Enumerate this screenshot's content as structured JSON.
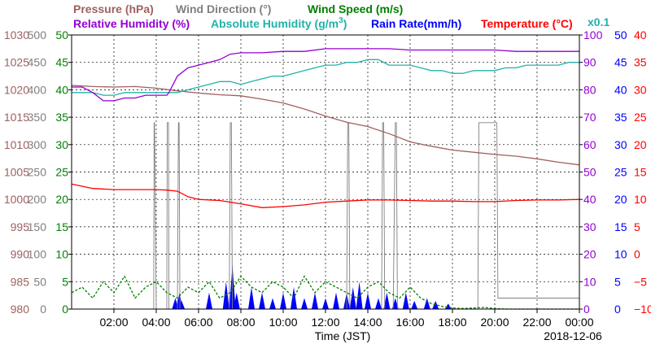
{
  "chart_data": {
    "type": "line",
    "date": "2018-12-06",
    "xlabel": "Time (JST)",
    "x_ticks": [
      "02:00",
      "04:00",
      "06:00",
      "08:00",
      "10:00",
      "12:00",
      "14:00",
      "16:00",
      "18:00",
      "20:00",
      "22:00",
      "00:00"
    ],
    "xlim_hours": [
      0,
      24
    ],
    "colors": {
      "pressure": "#a06060",
      "wind_direction": "#808080",
      "wind_speed": "#008000",
      "humidity": "#9400d3",
      "abs_humidity": "#20b2aa",
      "rain": "#0000ff",
      "temperature": "#ff0000"
    },
    "legend": {
      "pressure": "Pressure (hPa)",
      "wind_direction": "Wind Direction (°)",
      "wind_speed": "Wind Speed (m/s)",
      "humidity": "Relative Humidity (%)",
      "abs_humidity_main": "Absolute Humidity (g/m",
      "abs_humidity_sup": "3",
      "abs_humidity_end": ")",
      "rain": "Rain Rate(mm/h)",
      "temperature": "Temperature (°C)",
      "scale_note": "x0.1"
    },
    "axes": {
      "pressure": {
        "ticks": [
          "1030",
          "1025",
          "1020",
          "1015",
          "1010",
          "1005",
          "1000",
          "995",
          "990",
          "985",
          "980"
        ],
        "range": [
          980,
          1030
        ]
      },
      "wind_direction": {
        "ticks": [
          "500",
          "450",
          "400",
          "350",
          "300",
          "250",
          "200",
          "150",
          "100",
          "50",
          "0"
        ],
        "range": [
          0,
          500
        ]
      },
      "wind_speed": {
        "ticks": [
          "50",
          "45",
          "40",
          "35",
          "30",
          "25",
          "20",
          "15",
          "10",
          "5",
          "0"
        ],
        "range": [
          0,
          50
        ]
      },
      "humidity": {
        "ticks": [
          "100",
          "90",
          "80",
          "70",
          "60",
          "50",
          "40",
          "30",
          "20",
          "10",
          "0"
        ],
        "range": [
          0,
          100
        ]
      },
      "rain": {
        "ticks": [
          "50",
          "45",
          "40",
          "35",
          "30",
          "25",
          "20",
          "15",
          "10",
          "5",
          "0"
        ],
        "range": [
          0,
          50
        ]
      },
      "temperature": {
        "ticks": [
          "40",
          "35",
          "30",
          "25",
          "20",
          "15",
          "10",
          "5",
          "0",
          "−5",
          "−10"
        ],
        "range": [
          -10,
          40
        ]
      }
    },
    "series": [
      {
        "name": "Pressure",
        "axis": "pressure",
        "x": [
          0,
          1,
          2,
          3,
          4,
          5,
          6,
          7,
          8,
          9,
          10,
          11,
          12,
          13,
          14,
          15,
          16,
          17,
          18,
          19,
          20,
          21,
          22,
          23,
          24
        ],
        "values": [
          1020.8,
          1020.6,
          1020.5,
          1020.6,
          1020.3,
          1019.8,
          1019.4,
          1019.1,
          1018.9,
          1018.3,
          1017.6,
          1016.5,
          1015.2,
          1014.1,
          1013.3,
          1012.0,
          1010.5,
          1009.7,
          1009.0,
          1008.6,
          1008.2,
          1007.9,
          1007.4,
          1006.8,
          1006.3
        ]
      },
      {
        "name": "Relative Humidity",
        "axis": "humidity",
        "x": [
          0,
          0.5,
          1,
          1.5,
          2,
          2.5,
          3,
          3.5,
          4,
          4.5,
          4.6,
          5,
          5.5,
          6,
          6.5,
          7,
          7.5,
          8,
          9,
          10,
          11,
          12,
          13,
          14,
          15,
          16,
          17,
          18,
          19,
          20,
          21,
          22,
          23,
          24
        ],
        "values": [
          81,
          81,
          79,
          76,
          76,
          77,
          77,
          78,
          78,
          78,
          79,
          85,
          88,
          89,
          90,
          91,
          93,
          93.5,
          93.5,
          94,
          94,
          95,
          95,
          95,
          95,
          94.5,
          94.5,
          94.5,
          94.5,
          94.5,
          94,
          94,
          94,
          94
        ]
      },
      {
        "name": "Absolute Humidity",
        "axis": "humidity",
        "x": [
          0,
          0.5,
          1,
          1.5,
          2,
          2.5,
          3,
          3.5,
          4,
          4.5,
          5,
          5.5,
          6,
          6.5,
          7,
          7.5,
          8,
          8.5,
          9,
          9.5,
          10,
          10.5,
          11,
          11.5,
          12,
          12.5,
          13,
          13.5,
          14,
          14.5,
          15,
          15.5,
          16,
          16.5,
          17,
          17.5,
          18,
          18.5,
          19,
          19.5,
          20,
          20.5,
          21,
          21.5,
          22,
          22.5,
          23,
          23.5,
          24
        ],
        "values": [
          79,
          79,
          79,
          78,
          78,
          79,
          79,
          79,
          79,
          79,
          79,
          80,
          81,
          82,
          83,
          83,
          82,
          83,
          84,
          85,
          85,
          86,
          87,
          88,
          89,
          89,
          90,
          90,
          91,
          91,
          89,
          89,
          89,
          88,
          87,
          87,
          86,
          86,
          87,
          87,
          87,
          88,
          88,
          89,
          89,
          89,
          89,
          90,
          90
        ]
      },
      {
        "name": "Temperature",
        "axis": "temperature",
        "x": [
          0,
          1,
          2,
          3,
          4,
          4.5,
          5,
          5.5,
          6,
          7,
          8,
          9,
          10,
          11,
          12,
          13,
          14,
          15,
          16,
          17,
          18,
          19,
          20,
          21,
          22,
          23,
          24
        ],
        "values": [
          12.8,
          12,
          11.8,
          11.8,
          11.8,
          11.7,
          11.5,
          10.5,
          10,
          9.8,
          9.2,
          8.5,
          8.7,
          9,
          9.5,
          9.7,
          9.9,
          9.9,
          9.8,
          9.7,
          9.7,
          9.6,
          9.6,
          9.8,
          9.9,
          9.9,
          10
        ]
      },
      {
        "name": "Wind Direction",
        "axis": "wind_direction",
        "x": [
          0,
          1,
          2,
          3,
          3.88,
          3.9,
          3.92,
          4.0,
          4.5,
          4.52,
          4.58,
          4.6,
          4.62,
          4.7,
          5.0,
          5.05,
          5.08,
          5.12,
          5.2,
          6,
          7,
          7.45,
          7.5,
          7.55,
          7.6,
          8,
          9,
          10,
          11,
          12,
          13,
          13.05,
          13.1,
          13.15,
          13.3,
          14,
          14.65,
          14.7,
          14.75,
          14.8,
          15.0,
          15.2,
          15.3,
          15.35,
          15.4,
          15.6,
          16,
          17,
          18,
          19.2,
          19.25,
          20.1,
          20.15,
          21,
          22,
          23,
          24
        ],
        "values": [
          0,
          0,
          0,
          0,
          0,
          340,
          340,
          0,
          0,
          340,
          340,
          0,
          0,
          0,
          0,
          340,
          340,
          0,
          0,
          0,
          0,
          0,
          340,
          340,
          0,
          0,
          0,
          0,
          0,
          0,
          0,
          340,
          340,
          0,
          0,
          0,
          0,
          340,
          340,
          0,
          0,
          0,
          340,
          340,
          0,
          0,
          0,
          0,
          0,
          0,
          340,
          340,
          20,
          20,
          20,
          20,
          20
        ]
      },
      {
        "name": "Wind Speed",
        "axis": "wind_speed",
        "x": [
          0,
          0.5,
          1,
          1.5,
          2,
          2.5,
          3,
          3.5,
          4,
          4.5,
          5,
          5.5,
          6,
          6.5,
          7,
          7.5,
          8,
          8.5,
          9,
          9.5,
          10,
          10.5,
          11,
          11.5,
          12,
          12.5,
          13,
          13.5,
          14,
          14.5,
          15,
          15.5,
          16,
          16.5,
          17,
          17.5,
          18,
          18.5,
          19,
          19.5,
          20,
          20.5,
          21,
          21.5,
          22,
          22.5,
          23,
          23.5,
          24
        ],
        "values": [
          3,
          4,
          2,
          5,
          3,
          6,
          2,
          4,
          5,
          3,
          2,
          4,
          3,
          5,
          2,
          3,
          6,
          4,
          3,
          5,
          4,
          2,
          6,
          3,
          5,
          4,
          3,
          2,
          4,
          5,
          3,
          2,
          4,
          2,
          1,
          0.5,
          0.2,
          0.1,
          0.2,
          0.3,
          0.1,
          0,
          0,
          0,
          0,
          0,
          0,
          0,
          0
        ]
      },
      {
        "name": "Rain Rate",
        "axis": "rain",
        "x": [
          4.9,
          5.1,
          5.2,
          6.5,
          7.3,
          7.6,
          7.8,
          8.5,
          9,
          9.5,
          10,
          10.5,
          11,
          11.5,
          12,
          12.5,
          13,
          13.3,
          13.6,
          14,
          14.5,
          14.9,
          15.3,
          15.8,
          16.2,
          16.8,
          17.2,
          17.8
        ],
        "values": [
          2,
          3,
          1.5,
          3,
          5,
          8,
          3,
          4,
          3,
          2,
          3,
          4,
          2,
          3,
          2,
          3,
          3,
          4,
          5,
          3,
          2,
          3,
          2,
          3,
          1.5,
          2,
          1.5,
          1
        ]
      }
    ]
  }
}
